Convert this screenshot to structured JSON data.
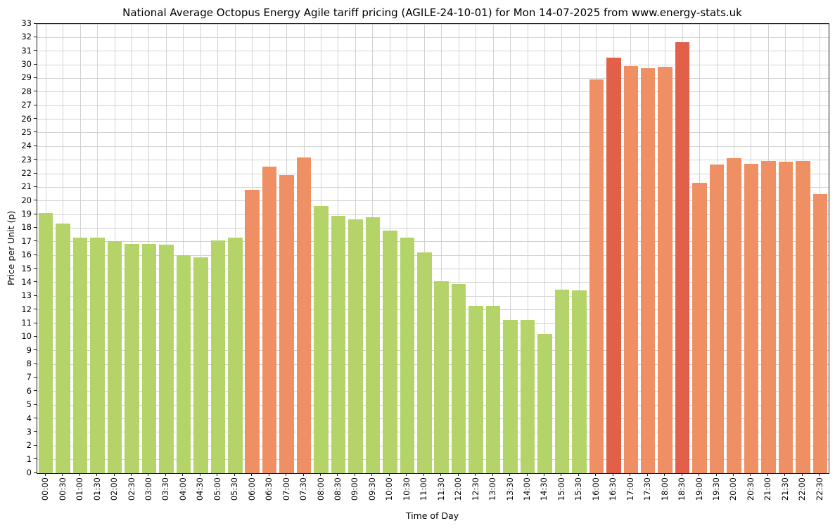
{
  "chart_data": {
    "type": "bar",
    "title": "National Average Octopus Energy Agile tariff pricing (AGILE-24-10-01) for Mon 14-07-2025 from www.energy-stats.uk",
    "xlabel": "Time of Day",
    "ylabel": "Price per Unit (p)",
    "ylim": [
      0,
      33
    ],
    "grid": true,
    "legend": false,
    "yticks": [
      0,
      1,
      2,
      3,
      4,
      5,
      6,
      7,
      8,
      9,
      10,
      11,
      12,
      13,
      14,
      15,
      16,
      17,
      18,
      19,
      20,
      21,
      22,
      23,
      24,
      25,
      26,
      27,
      28,
      29,
      30,
      31,
      32,
      33
    ],
    "categories": [
      "00:00",
      "00:30",
      "01:00",
      "01:30",
      "02:00",
      "02:30",
      "03:00",
      "03:30",
      "04:00",
      "04:30",
      "05:00",
      "05:30",
      "06:00",
      "06:30",
      "07:00",
      "07:30",
      "08:00",
      "08:30",
      "09:00",
      "09:30",
      "10:00",
      "10:30",
      "11:00",
      "11:30",
      "12:00",
      "12:30",
      "13:00",
      "13:30",
      "14:00",
      "14:30",
      "15:00",
      "15:30",
      "16:00",
      "16:30",
      "17:00",
      "17:30",
      "18:00",
      "18:30",
      "19:00",
      "19:30",
      "20:00",
      "20:30",
      "21:00",
      "21:30",
      "22:00",
      "22:30"
    ],
    "values": [
      19.1,
      18.35,
      17.3,
      17.3,
      17.05,
      16.85,
      16.85,
      16.8,
      16.0,
      15.85,
      17.1,
      17.3,
      20.8,
      22.5,
      21.9,
      23.2,
      19.6,
      18.9,
      18.65,
      18.8,
      17.8,
      17.3,
      16.2,
      14.1,
      13.9,
      12.3,
      12.3,
      11.25,
      11.25,
      10.25,
      13.5,
      13.45,
      28.9,
      30.5,
      29.9,
      29.75,
      29.85,
      31.65,
      21.35,
      22.65,
      23.15,
      22.7,
      22.95,
      22.9,
      22.95,
      20.5
    ],
    "bar_colors": [
      "green",
      "green",
      "green",
      "green",
      "green",
      "green",
      "green",
      "green",
      "green",
      "green",
      "green",
      "green",
      "orange",
      "orange",
      "orange",
      "orange",
      "green",
      "green",
      "green",
      "green",
      "green",
      "green",
      "green",
      "green",
      "green",
      "green",
      "green",
      "green",
      "green",
      "green",
      "green",
      "green",
      "orange",
      "red",
      "orange",
      "orange",
      "orange",
      "red",
      "orange",
      "orange",
      "orange",
      "orange",
      "orange",
      "orange",
      "orange",
      "orange"
    ],
    "palette": {
      "green": "#b4d46a",
      "orange": "#ee9063",
      "red": "#e2604a"
    },
    "grid_color": "#d2d2d2",
    "legend_position": "none"
  }
}
